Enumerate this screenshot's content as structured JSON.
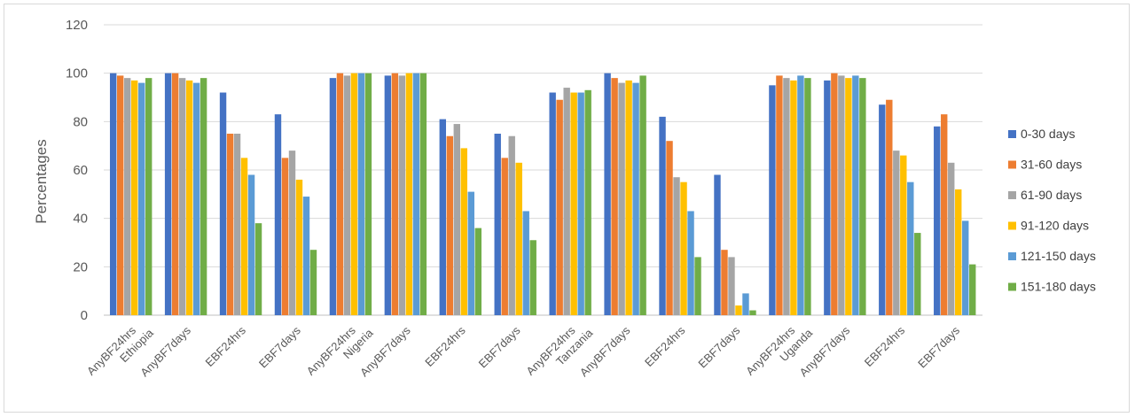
{
  "chart_data": {
    "type": "bar",
    "title": "",
    "xlabel": "",
    "ylabel": "Percentages",
    "ylim": [
      0,
      120
    ],
    "yticks": [
      0,
      20,
      40,
      60,
      80,
      100,
      120
    ],
    "grid": true,
    "legend_position": "right",
    "categories": [
      {
        "indicator": "AnyBF24hrs",
        "country": "Ethiopia"
      },
      {
        "indicator": "AnyBF7days",
        "country": ""
      },
      {
        "indicator": "EBF24hrs",
        "country": ""
      },
      {
        "indicator": "EBF7days",
        "country": ""
      },
      {
        "indicator": "AnyBF24hrs",
        "country": "Nigeria"
      },
      {
        "indicator": "AnyBF7days",
        "country": ""
      },
      {
        "indicator": "EBF24hrs",
        "country": ""
      },
      {
        "indicator": "EBF7days",
        "country": ""
      },
      {
        "indicator": "AnyBF24hrs",
        "country": "Tanzania"
      },
      {
        "indicator": "AnyBF7days",
        "country": ""
      },
      {
        "indicator": "EBF24hrs",
        "country": ""
      },
      {
        "indicator": "EBF7days",
        "country": ""
      },
      {
        "indicator": "AnyBF24hrs",
        "country": "Uganda"
      },
      {
        "indicator": "AnyBF7days",
        "country": ""
      },
      {
        "indicator": "EBF24hrs",
        "country": ""
      },
      {
        "indicator": "EBF7days",
        "country": ""
      }
    ],
    "series": [
      {
        "name": "0-30 days",
        "color": "#4472C4",
        "values": [
          100,
          100,
          92,
          83,
          98,
          99,
          81,
          75,
          92,
          100,
          82,
          58,
          95,
          97,
          87,
          78
        ]
      },
      {
        "name": "31-60 days",
        "color": "#ED7D31",
        "values": [
          99,
          100,
          75,
          65,
          100,
          100,
          74,
          65,
          89,
          98,
          72,
          27,
          99,
          100,
          89,
          83
        ]
      },
      {
        "name": "61-90 days",
        "color": "#A5A5A5",
        "values": [
          98,
          98,
          75,
          68,
          99,
          99,
          79,
          74,
          94,
          96,
          57,
          24,
          98,
          99,
          68,
          63
        ]
      },
      {
        "name": "91-120 days",
        "color": "#FFC000",
        "values": [
          97,
          97,
          65,
          56,
          100,
          100,
          69,
          63,
          92,
          97,
          55,
          4,
          97,
          98,
          66,
          52
        ]
      },
      {
        "name": "121-150 days",
        "color": "#5B9BD5",
        "values": [
          96,
          96,
          58,
          49,
          100,
          100,
          51,
          43,
          92,
          96,
          43,
          9,
          99,
          99,
          55,
          39
        ]
      },
      {
        "name": "151-180 days",
        "color": "#70AD47",
        "values": [
          98,
          98,
          38,
          27,
          100,
          100,
          36,
          31,
          93,
          99,
          24,
          2,
          98,
          98,
          34,
          21
        ]
      }
    ]
  }
}
